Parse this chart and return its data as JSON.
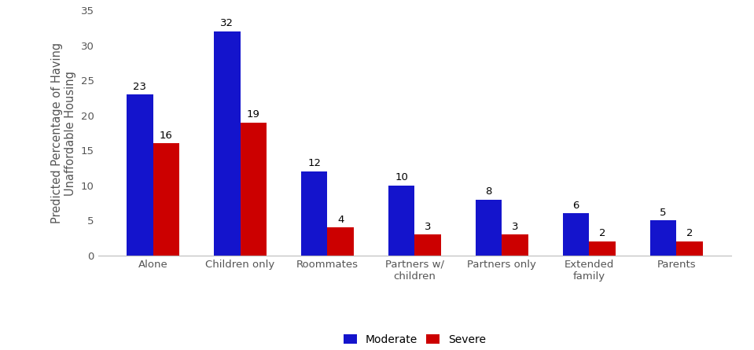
{
  "categories": [
    "Alone",
    "Children only",
    "Roommates",
    "Partners w/\nchildren",
    "Partners only",
    "Extended\nfamily",
    "Parents"
  ],
  "moderate": [
    23,
    32,
    12,
    10,
    8,
    6,
    5
  ],
  "severe": [
    16,
    19,
    4,
    3,
    3,
    2,
    2
  ],
  "moderate_color": "#1414CC",
  "severe_color": "#CC0000",
  "ylabel": "Predicted Percentage of Having\nUnaffordable Housing",
  "ylim": [
    0,
    35
  ],
  "yticks": [
    0,
    5,
    10,
    15,
    20,
    25,
    30,
    35
  ],
  "legend_labels": [
    "Moderate",
    "Severe"
  ],
  "bar_width": 0.3,
  "label_fontsize": 9.5,
  "tick_fontsize": 9.5,
  "ylabel_fontsize": 10.5,
  "legend_fontsize": 10,
  "background_color": "#ffffff"
}
